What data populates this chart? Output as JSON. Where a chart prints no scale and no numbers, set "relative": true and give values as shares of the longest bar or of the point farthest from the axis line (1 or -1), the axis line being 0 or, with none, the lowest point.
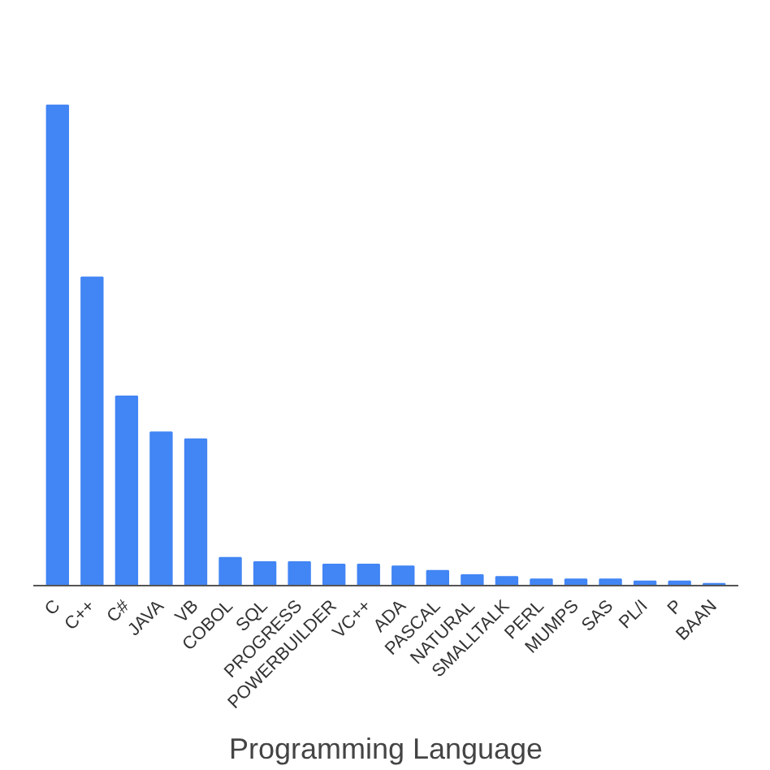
{
  "chart_data": {
    "type": "bar",
    "xlabel": "Programming Language",
    "relative": true,
    "color": "#4285f4",
    "grid": false,
    "categories": [
      "C",
      "C++",
      "C#",
      "JAVA",
      "VB",
      "COBOL",
      "SQL",
      "PROGRESS",
      "POWERBUILDER",
      "VC++",
      "ADA",
      "PASCAL",
      "NATURAL",
      "SMALLTALK",
      "PERL",
      "MUMPS",
      "SAS",
      "PL/I",
      "P",
      "BAAN"
    ],
    "values": [
      1,
      0.642,
      0.394,
      0.319,
      0.305,
      0.058,
      0.049,
      0.049,
      0.044,
      0.044,
      0.04,
      0.031,
      0.022,
      0.018,
      0.013,
      0.013,
      0.013,
      0.009,
      0.009,
      0.004
    ]
  }
}
